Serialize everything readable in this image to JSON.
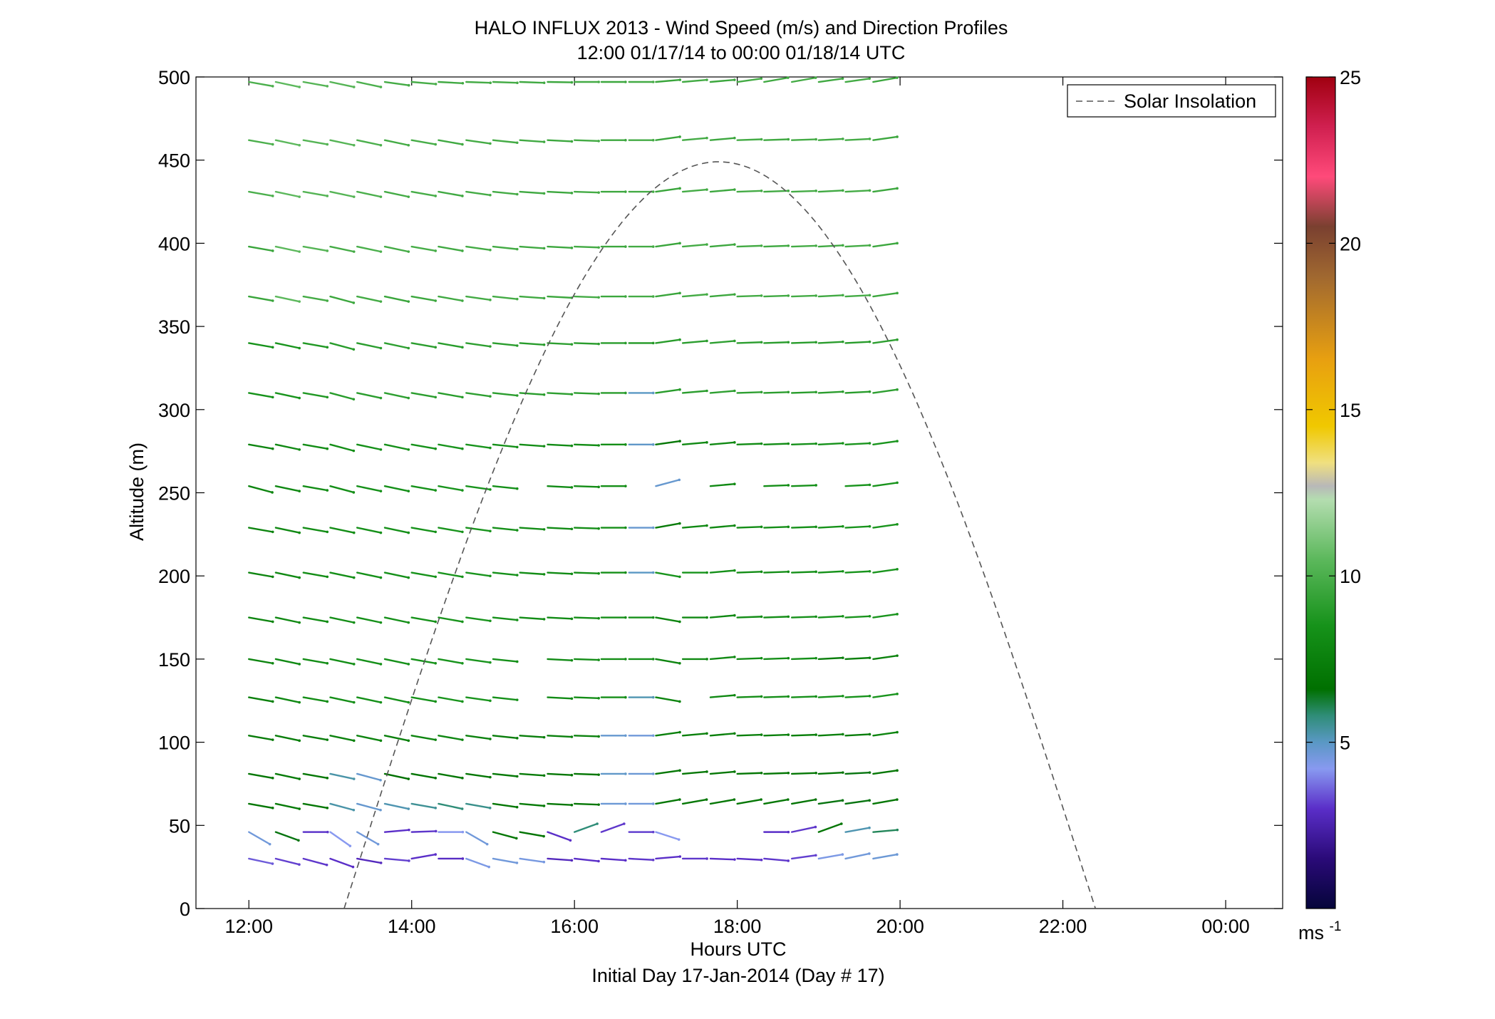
{
  "chart_data": {
    "type": "wind-barb-profile",
    "title": "HALO INFLUX 2013 - Wind Speed (m/s) and Direction Profiles",
    "subtitle": "12:00 01/17/14 to 00:00 01/18/14  UTC",
    "xlabel": "Hours UTC",
    "xlabel2": "Initial Day 17-Jan-2014 (Day # 17)",
    "ylabel": "Altitude (m)",
    "xlim": [
      11.35,
      24.7
    ],
    "ylim": [
      0,
      500
    ],
    "x_ticks": [
      {
        "value": 12,
        "label": "12:00"
      },
      {
        "value": 14,
        "label": "14:00"
      },
      {
        "value": 16,
        "label": "16:00"
      },
      {
        "value": 18,
        "label": "18:00"
      },
      {
        "value": 20,
        "label": "20:00"
      },
      {
        "value": 22,
        "label": "22:00"
      },
      {
        "value": 24,
        "label": "00:00"
      }
    ],
    "y_ticks": [
      0,
      50,
      100,
      150,
      200,
      250,
      300,
      350,
      400,
      450,
      500
    ],
    "legend": {
      "label": "Solar Insolation",
      "placement": "top-right",
      "line_color": "#555555",
      "dashed": true
    },
    "solar_insolation": {
      "start_hour": 13.17,
      "peak_hour": 17.77,
      "end_hour": 22.4,
      "peak_altitude": 449
    },
    "colorbar": {
      "unit_label": "ms",
      "unit_exponent": "-1",
      "range": [
        0,
        25
      ],
      "ticks": [
        5,
        10,
        15,
        20,
        25
      ],
      "colors": [
        {
          "v": 0,
          "c": "#05053a"
        },
        {
          "v": 1.5,
          "c": "#2a0a78"
        },
        {
          "v": 3,
          "c": "#5a2ec8"
        },
        {
          "v": 4.2,
          "c": "#8899f0"
        },
        {
          "v": 5,
          "c": "#5a98c4"
        },
        {
          "v": 5.8,
          "c": "#2f8d78"
        },
        {
          "v": 6.6,
          "c": "#007000"
        },
        {
          "v": 8.5,
          "c": "#16921a"
        },
        {
          "v": 10.5,
          "c": "#5cb85c"
        },
        {
          "v": 12.3,
          "c": "#b4ddb0"
        },
        {
          "v": 12.7,
          "c": "#b8b8b8"
        },
        {
          "v": 13.4,
          "c": "#f0e080"
        },
        {
          "v": 14.5,
          "c": "#f0c800"
        },
        {
          "v": 16.5,
          "c": "#e8a010"
        },
        {
          "v": 19,
          "c": "#a06830"
        },
        {
          "v": 20.5,
          "c": "#7a4030"
        },
        {
          "v": 22,
          "c": "#ff4a7a"
        },
        {
          "v": 23.5,
          "c": "#d02050"
        },
        {
          "v": 25,
          "c": "#a00010"
        }
      ]
    },
    "times": [
      12,
      12.33,
      12.67,
      13,
      13.33,
      13.67,
      14,
      14.33,
      14.67,
      15,
      15.33,
      15.67,
      16,
      16.33,
      16.67,
      17,
      17.33,
      17.67,
      18,
      18.33,
      18.67,
      19,
      19.33,
      19.67
    ],
    "altitudes": [
      30,
      46,
      63,
      81,
      104,
      127,
      150,
      175,
      202,
      229,
      254,
      279,
      310,
      340,
      368,
      398,
      431,
      462,
      497
    ],
    "wind_speed_ms": [
      [
        3.5,
        3.2,
        3.1,
        3.0,
        2.8,
        3.2,
        3.0,
        2.9,
        4.4,
        4.6,
        4.5,
        2.8,
        3.0,
        3.0,
        3.1,
        3.0,
        3.1,
        3.0,
        3.0,
        3.1,
        3.2,
        4.4,
        4.6,
        4.7
      ],
      [
        4.6,
        6.5,
        3.1,
        4.2,
        4.6,
        3.0,
        3.1,
        4.2,
        4.6,
        7.0,
        6.8,
        3.0,
        5.8,
        3.1,
        3.2,
        4.2,
        null,
        null,
        null,
        3.0,
        3.1,
        6.9,
        5.2,
        6.0
      ],
      [
        7.0,
        7.2,
        7.0,
        5.3,
        4.8,
        5.2,
        5.5,
        5.8,
        5.6,
        7.0,
        7.2,
        7.0,
        7.0,
        4.7,
        4.6,
        7.0,
        7.0,
        7.0,
        7.0,
        7.0,
        6.8,
        6.5,
        6.5,
        7.0
      ],
      [
        7.0,
        7.2,
        7.0,
        5.3,
        4.8,
        6.6,
        6.8,
        7.0,
        7.0,
        7.1,
        7.2,
        7.0,
        7.0,
        4.9,
        4.7,
        7.0,
        7.0,
        7.0,
        7.0,
        7.0,
        7.0,
        6.8,
        6.5,
        7.0
      ],
      [
        7.2,
        7.4,
        7.4,
        7.6,
        7.7,
        7.5,
        7.8,
        7.9,
        7.6,
        7.3,
        7.4,
        7.5,
        7.6,
        4.8,
        4.6,
        7.5,
        7.5,
        7.5,
        7.5,
        7.5,
        7.5,
        7.5,
        7.3,
        7.8
      ],
      [
        7.5,
        8.0,
        8.2,
        8.3,
        8.4,
        8.4,
        8.5,
        8.6,
        8.6,
        8.4,
        null,
        8.1,
        8.2,
        8.3,
        5.2,
        7.8,
        null,
        8.0,
        8.2,
        8.3,
        8.4,
        8.5,
        8.5,
        8.6
      ],
      [
        7.8,
        8.0,
        8.2,
        8.3,
        8.4,
        8.4,
        8.5,
        8.6,
        8.6,
        8.4,
        null,
        8.1,
        8.2,
        8.3,
        8.4,
        7.8,
        8.0,
        8.0,
        8.2,
        8.3,
        8.4,
        7.4,
        7.5,
        7.6
      ],
      [
        7.8,
        8.0,
        8.2,
        8.3,
        8.4,
        8.4,
        8.5,
        8.6,
        8.6,
        8.4,
        8.2,
        8.1,
        8.2,
        8.3,
        8.4,
        7.8,
        8.0,
        8.0,
        8.2,
        8.3,
        8.4,
        8.5,
        8.6,
        8.6
      ],
      [
        7.8,
        8.0,
        8.2,
        8.3,
        8.4,
        8.4,
        8.5,
        8.6,
        8.6,
        8.4,
        8.2,
        8.1,
        8.2,
        8.3,
        5.0,
        8.6,
        8.5,
        8.4,
        8.2,
        8.3,
        8.4,
        8.5,
        8.6,
        8.6
      ],
      [
        7.8,
        8.0,
        8.2,
        8.3,
        8.4,
        8.4,
        8.5,
        8.6,
        8.6,
        8.4,
        8.2,
        8.1,
        8.2,
        8.3,
        4.8,
        7.2,
        8.0,
        8.0,
        8.2,
        8.3,
        8.4,
        8.5,
        8.6,
        8.6
      ],
      [
        7.8,
        8.0,
        8.2,
        8.3,
        8.4,
        8.4,
        8.5,
        8.6,
        8.6,
        8.4,
        null,
        8.1,
        8.2,
        8.3,
        null,
        4.8,
        null,
        8.0,
        null,
        8.3,
        8.4,
        null,
        8.6,
        8.6
      ],
      [
        7.8,
        8.0,
        8.2,
        8.3,
        8.4,
        8.4,
        8.5,
        8.6,
        8.6,
        8.4,
        8.2,
        8.1,
        8.2,
        8.3,
        4.9,
        7.0,
        8.0,
        8.0,
        8.2,
        8.3,
        8.4,
        8.5,
        8.6,
        8.6
      ],
      [
        8.5,
        8.6,
        8.8,
        9.0,
        9.1,
        9.2,
        9.1,
        9.0,
        9.2,
        9.1,
        9.0,
        9.2,
        9.1,
        9.0,
        5.0,
        9.0,
        9.1,
        9.2,
        9.2,
        9.1,
        9.0,
        9.1,
        9.0,
        9.2
      ],
      [
        8.5,
        8.6,
        8.8,
        9.0,
        9.1,
        9.2,
        9.1,
        9.0,
        9.2,
        9.1,
        9.0,
        9.2,
        9.1,
        9.0,
        8.8,
        9.0,
        9.1,
        9.2,
        9.2,
        9.1,
        9.0,
        9.1,
        9.0,
        9.2
      ],
      [
        9.5,
        10.5,
        9.8,
        9.6,
        9.8,
        9.5,
        9.6,
        9.7,
        9.8,
        9.8,
        9.7,
        9.6,
        9.8,
        9.6,
        9.8,
        9.5,
        9.8,
        9.6,
        9.8,
        9.7,
        9.8,
        9.7,
        9.8,
        9.6
      ],
      [
        9.5,
        10.5,
        10.3,
        9.8,
        10.0,
        9.8,
        9.9,
        9.7,
        9.8,
        9.8,
        9.7,
        9.6,
        9.8,
        9.6,
        9.8,
        9.5,
        9.8,
        9.6,
        9.8,
        9.7,
        9.8,
        9.7,
        9.8,
        9.6
      ],
      [
        10.0,
        10.5,
        10.3,
        10.3,
        10.0,
        9.8,
        9.9,
        9.7,
        9.8,
        9.8,
        9.7,
        9.6,
        9.8,
        9.6,
        9.8,
        9.5,
        9.8,
        9.6,
        9.8,
        9.7,
        9.8,
        9.7,
        9.8,
        9.6
      ],
      [
        10.0,
        10.5,
        10.3,
        10.3,
        10.0,
        9.8,
        9.9,
        9.7,
        9.8,
        9.8,
        9.7,
        9.6,
        9.8,
        9.6,
        9.8,
        9.5,
        9.8,
        9.6,
        9.8,
        9.7,
        9.8,
        9.7,
        9.8,
        9.6
      ],
      [
        10.0,
        10.5,
        10.3,
        10.3,
        10.0,
        9.8,
        9.9,
        9.7,
        9.8,
        9.8,
        9.7,
        9.6,
        9.8,
        9.6,
        9.8,
        9.5,
        9.8,
        9.6,
        9.8,
        9.7,
        9.8,
        9.7,
        9.8,
        9.6
      ]
    ],
    "wind_dir_deg": [
      [
        -12,
        -14,
        -15,
        -20,
        -10,
        -5,
        10,
        0,
        -20,
        -10,
        -8,
        -4,
        -6,
        -4,
        -3,
        5,
        0,
        -2,
        -3,
        -5,
        8,
        10,
        12,
        10
      ],
      [
        -30,
        -20,
        0,
        -35,
        -30,
        5,
        2,
        0,
        -30,
        -15,
        -10,
        -20,
        20,
        20,
        0,
        -18,
        0,
        0,
        0,
        0,
        12,
        20,
        10,
        5
      ],
      [
        -10,
        -12,
        -10,
        -15,
        -15,
        -12,
        -10,
        -12,
        -10,
        -8,
        -5,
        -3,
        -2,
        0,
        0,
        10,
        10,
        10,
        10,
        10,
        10,
        8,
        8,
        10
      ],
      [
        -10,
        -12,
        -10,
        -12,
        -15,
        -12,
        -10,
        -10,
        -8,
        -6,
        -4,
        -3,
        -2,
        0,
        0,
        8,
        5,
        5,
        2,
        2,
        2,
        3,
        3,
        8
      ],
      [
        -10,
        -12,
        -10,
        -12,
        -12,
        -12,
        -10,
        -10,
        -8,
        -6,
        -4,
        -3,
        -2,
        0,
        0,
        8,
        5,
        5,
        2,
        2,
        2,
        3,
        3,
        8
      ],
      [
        -10,
        -12,
        -10,
        -12,
        -12,
        -12,
        -10,
        -10,
        -8,
        -6,
        0,
        -3,
        -2,
        0,
        0,
        -10,
        0,
        5,
        2,
        2,
        2,
        3,
        3,
        8
      ],
      [
        -10,
        -12,
        -10,
        -12,
        -12,
        -12,
        -10,
        -10,
        -8,
        -6,
        0,
        -3,
        -2,
        0,
        0,
        -10,
        0,
        5,
        2,
        2,
        2,
        3,
        3,
        8
      ],
      [
        -10,
        -12,
        -10,
        -12,
        -12,
        -12,
        -10,
        -10,
        -8,
        -6,
        -4,
        -3,
        -2,
        0,
        0,
        -10,
        0,
        5,
        2,
        2,
        2,
        3,
        3,
        8
      ],
      [
        -10,
        -12,
        -10,
        -12,
        -12,
        -12,
        -10,
        -10,
        -8,
        -6,
        -4,
        -3,
        -2,
        0,
        0,
        -10,
        0,
        5,
        2,
        2,
        2,
        3,
        3,
        8
      ],
      [
        -10,
        -12,
        -10,
        -12,
        -12,
        -12,
        -10,
        -10,
        -8,
        -6,
        -4,
        -3,
        -2,
        0,
        0,
        10,
        5,
        5,
        2,
        2,
        2,
        3,
        3,
        8
      ],
      [
        -15,
        -12,
        -10,
        -15,
        -12,
        -12,
        -10,
        -10,
        -8,
        -6,
        0,
        -3,
        -2,
        0,
        0,
        15,
        0,
        5,
        0,
        2,
        2,
        0,
        3,
        8
      ],
      [
        -10,
        -12,
        -10,
        -15,
        -12,
        -12,
        -10,
        -10,
        -8,
        -6,
        -4,
        -3,
        -2,
        0,
        0,
        8,
        5,
        5,
        2,
        2,
        2,
        3,
        3,
        8
      ],
      [
        -10,
        -12,
        -10,
        -15,
        -12,
        -12,
        -10,
        -10,
        -8,
        -6,
        -4,
        -3,
        -2,
        0,
        0,
        8,
        5,
        5,
        2,
        2,
        2,
        3,
        3,
        8
      ],
      [
        -10,
        -12,
        -10,
        -15,
        -12,
        -12,
        -10,
        -10,
        -8,
        -6,
        -4,
        -3,
        -2,
        0,
        0,
        8,
        5,
        5,
        2,
        2,
        2,
        3,
        3,
        8
      ],
      [
        -10,
        -12,
        -10,
        -15,
        -12,
        -12,
        -10,
        -10,
        -8,
        -6,
        -4,
        -3,
        -2,
        0,
        0,
        8,
        5,
        5,
        2,
        2,
        2,
        3,
        3,
        8
      ],
      [
        -10,
        -12,
        -10,
        -12,
        -12,
        -12,
        -10,
        -10,
        -8,
        -6,
        -4,
        -3,
        -2,
        0,
        0,
        8,
        5,
        5,
        2,
        2,
        2,
        3,
        3,
        8
      ],
      [
        -10,
        -12,
        -10,
        -12,
        -12,
        -12,
        -10,
        -10,
        -8,
        -6,
        -4,
        -3,
        -2,
        0,
        0,
        8,
        5,
        5,
        2,
        2,
        2,
        3,
        3,
        8
      ],
      [
        -10,
        -12,
        -10,
        -12,
        -12,
        -12,
        -10,
        -10,
        -8,
        -6,
        -4,
        -3,
        -2,
        0,
        0,
        8,
        5,
        5,
        2,
        2,
        2,
        3,
        3,
        8
      ],
      [
        -10,
        -12,
        -10,
        -12,
        -12,
        -8,
        -5,
        -3,
        -2,
        -2,
        -2,
        -1,
        0,
        0,
        0,
        5,
        5,
        5,
        8,
        10,
        10,
        8,
        8,
        10
      ]
    ]
  }
}
